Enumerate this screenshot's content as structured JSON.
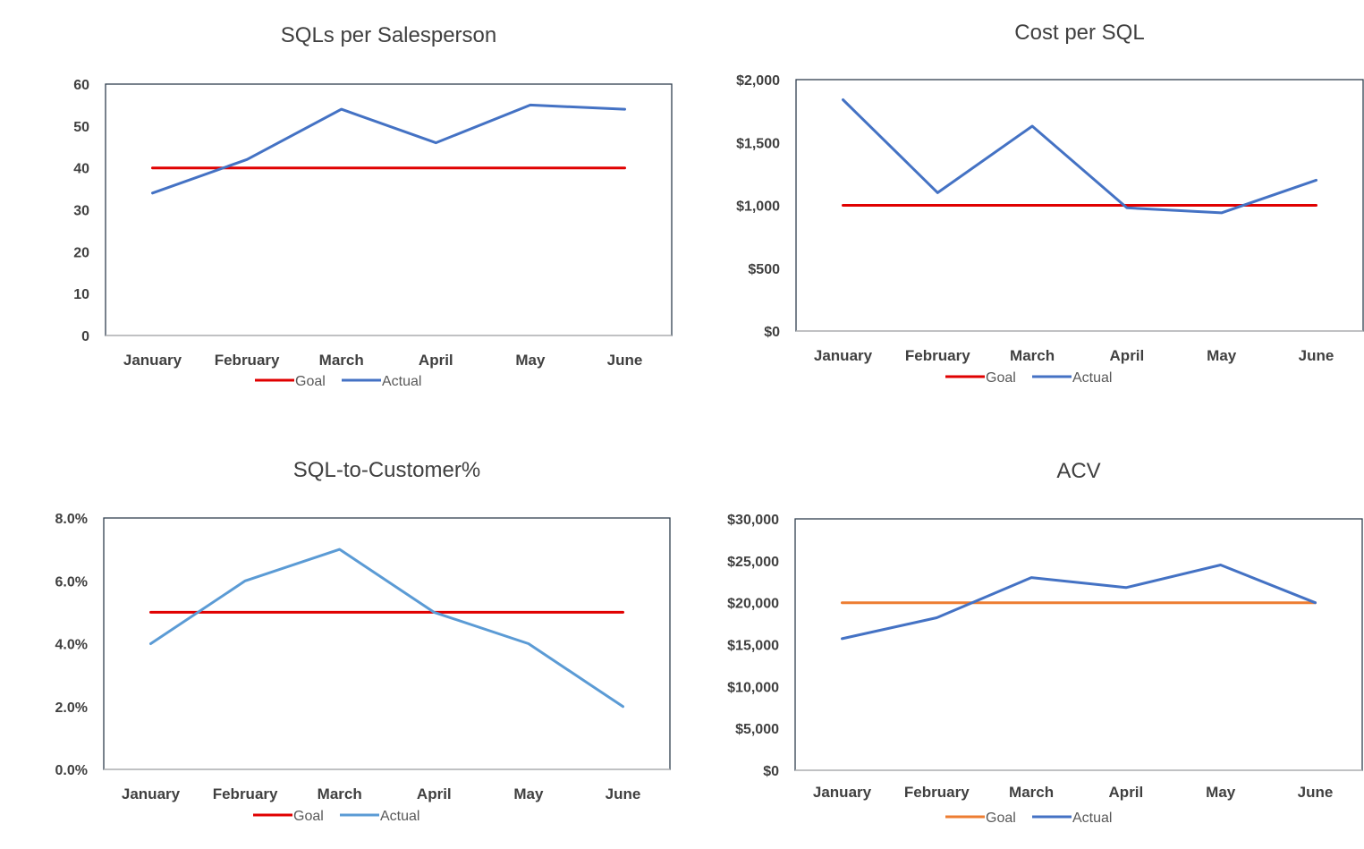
{
  "chart_data": [
    {
      "type": "line",
      "title": "SQLs per Salesperson",
      "categories": [
        "January",
        "February",
        "March",
        "April",
        "May",
        "June"
      ],
      "series": [
        {
          "name": "Goal",
          "color": "#e00000",
          "values": [
            40,
            40,
            40,
            40,
            40,
            40
          ]
        },
        {
          "name": "Actual",
          "color": "#4472c4",
          "values": [
            34,
            42,
            54,
            46,
            55,
            54
          ]
        }
      ],
      "ylim": [
        0,
        60
      ],
      "yticks": [
        0,
        10,
        20,
        30,
        40,
        50,
        60
      ],
      "ytick_labels": [
        "0",
        "10",
        "20",
        "30",
        "40",
        "50",
        "60"
      ],
      "grid": false,
      "legend": "bottom"
    },
    {
      "type": "line",
      "title": "Cost per SQL",
      "categories": [
        "January",
        "February",
        "March",
        "April",
        "May",
        "June"
      ],
      "series": [
        {
          "name": "Goal",
          "color": "#e00000",
          "values": [
            1000,
            1000,
            1000,
            1000,
            1000,
            1000
          ]
        },
        {
          "name": "Actual",
          "color": "#4472c4",
          "values": [
            1840,
            1100,
            1630,
            980,
            940,
            1200
          ]
        }
      ],
      "ylim": [
        0,
        2000
      ],
      "yticks": [
        0,
        500,
        1000,
        1500,
        2000
      ],
      "ytick_labels": [
        "$0",
        "$500",
        "$1,000",
        "$1,500",
        "$2,000"
      ],
      "grid": false,
      "legend": "bottom"
    },
    {
      "type": "line",
      "title": "SQL-to-Customer%",
      "categories": [
        "January",
        "February",
        "March",
        "April",
        "May",
        "June"
      ],
      "series": [
        {
          "name": "Goal",
          "color": "#e00000",
          "values": [
            5.0,
            5.0,
            5.0,
            5.0,
            5.0,
            5.0
          ]
        },
        {
          "name": "Actual",
          "color": "#5b9bd5",
          "values": [
            4.0,
            6.0,
            7.0,
            5.0,
            4.0,
            2.0
          ]
        }
      ],
      "ylim": [
        0,
        8
      ],
      "yticks": [
        0,
        2,
        4,
        6,
        8
      ],
      "ytick_labels": [
        "0.0%",
        "2.0%",
        "4.0%",
        "6.0%",
        "8.0%"
      ],
      "grid": false,
      "legend": "bottom"
    },
    {
      "type": "line",
      "title": "ACV",
      "categories": [
        "January",
        "February",
        "March",
        "April",
        "May",
        "June"
      ],
      "series": [
        {
          "name": "Goal",
          "color": "#ed7d31",
          "values": [
            20000,
            20000,
            20000,
            20000,
            20000,
            20000
          ]
        },
        {
          "name": "Actual",
          "color": "#4472c4",
          "values": [
            15700,
            18200,
            23000,
            21800,
            24500,
            20000
          ]
        }
      ],
      "ylim": [
        0,
        30000
      ],
      "yticks": [
        0,
        5000,
        10000,
        15000,
        20000,
        25000,
        30000
      ],
      "ytick_labels": [
        "$0",
        "$5,000",
        "$10,000",
        "$15,000",
        "$20,000",
        "$25,000",
        "$30,000"
      ],
      "grid": false,
      "legend": "bottom"
    }
  ]
}
